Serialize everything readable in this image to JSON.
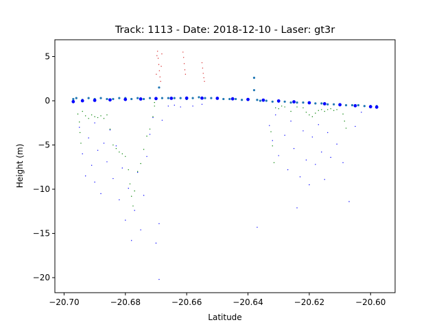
{
  "chart_data": {
    "type": "scatter",
    "title": "Track: 1113 - Date: 2018-12-10 - Laser: gt3r",
    "xlabel": "Latitude",
    "ylabel": "Height (m)",
    "xlim": [
      -20.703,
      -20.592
    ],
    "ylim": [
      -21.7,
      6.9
    ],
    "xticks": [
      -20.7,
      -20.68,
      -20.66,
      -20.64,
      -20.62,
      -20.6
    ],
    "xtick_labels": [
      "−20.70",
      "−20.68",
      "−20.66",
      "−20.64",
      "−20.62",
      "−20.60"
    ],
    "yticks": [
      5,
      0,
      -5,
      -10,
      -15,
      -20
    ],
    "ytick_labels": [
      "5",
      "0",
      "−5",
      "−10",
      "−15",
      "−20"
    ],
    "grid": false,
    "legend": "none",
    "series": [
      {
        "color": "#1f77b4",
        "marker_size": "medium",
        "points": [
          [
            -20.697,
            0.2
          ],
          [
            -20.696,
            0.3
          ],
          [
            -20.694,
            0.1
          ],
          [
            -20.692,
            0.3
          ],
          [
            -20.69,
            0.2
          ],
          [
            -20.688,
            0.3
          ],
          [
            -20.686,
            0.2
          ],
          [
            -20.684,
            0.2
          ],
          [
            -20.682,
            0.3
          ],
          [
            -20.68,
            0.3
          ],
          [
            -20.678,
            0.2
          ],
          [
            -20.676,
            0.3
          ],
          [
            -20.674,
            0.2
          ],
          [
            -20.672,
            0.3
          ],
          [
            -20.67,
            0.3
          ],
          [
            -20.669,
            1.5
          ],
          [
            -20.668,
            0.3
          ],
          [
            -20.666,
            0.3
          ],
          [
            -20.664,
            0.3
          ],
          [
            -20.662,
            0.3
          ],
          [
            -20.66,
            0.2
          ],
          [
            -20.658,
            0.3
          ],
          [
            -20.656,
            0.4
          ],
          [
            -20.654,
            0.3
          ],
          [
            -20.652,
            0.3
          ],
          [
            -20.65,
            0.3
          ],
          [
            -20.648,
            0.2
          ],
          [
            -20.646,
            0.2
          ],
          [
            -20.644,
            0.2
          ],
          [
            -20.642,
            0.1
          ],
          [
            -20.64,
            0.1
          ],
          [
            -20.638,
            1.2
          ],
          [
            -20.638,
            2.6
          ],
          [
            -20.637,
            0.1
          ],
          [
            -20.636,
            0.0
          ],
          [
            -20.634,
            0.0
          ],
          [
            -20.632,
            -0.1
          ],
          [
            -20.63,
            -0.1
          ],
          [
            -20.628,
            -0.1
          ],
          [
            -20.626,
            -0.2
          ],
          [
            -20.624,
            -0.2
          ],
          [
            -20.622,
            -0.2
          ],
          [
            -20.62,
            -0.2
          ],
          [
            -20.618,
            -0.3
          ],
          [
            -20.616,
            -0.3
          ],
          [
            -20.614,
            -0.4
          ],
          [
            -20.612,
            -0.4
          ],
          [
            -20.61,
            -0.4
          ],
          [
            -20.608,
            -0.5
          ],
          [
            -20.606,
            -0.5
          ],
          [
            -20.604,
            -0.5
          ],
          [
            -20.602,
            -0.6
          ],
          [
            -20.6,
            -0.6
          ],
          [
            -20.598,
            -0.6
          ]
        ]
      },
      {
        "color": "#0000ff",
        "marker_size": "large",
        "points": [
          [
            -20.697,
            -0.1
          ],
          [
            -20.694,
            0.0
          ],
          [
            -20.69,
            0.05
          ],
          [
            -20.685,
            0.1
          ],
          [
            -20.68,
            0.15
          ],
          [
            -20.675,
            0.2
          ],
          [
            -20.67,
            0.25
          ],
          [
            -20.665,
            0.28
          ],
          [
            -20.66,
            0.3
          ],
          [
            -20.655,
            0.3
          ],
          [
            -20.65,
            0.28
          ],
          [
            -20.645,
            0.22
          ],
          [
            -20.64,
            0.15
          ],
          [
            -20.635,
            0.07
          ],
          [
            -20.63,
            -0.02
          ],
          [
            -20.625,
            -0.12
          ],
          [
            -20.62,
            -0.23
          ],
          [
            -20.615,
            -0.34
          ],
          [
            -20.61,
            -0.45
          ],
          [
            -20.605,
            -0.56
          ],
          [
            -20.6,
            -0.67
          ],
          [
            -20.598,
            -0.72
          ]
        ]
      },
      {
        "color": "#0000ff",
        "marker_size": "small",
        "points": [
          [
            -20.695,
            -3.0
          ],
          [
            -20.694,
            -6.0
          ],
          [
            -20.693,
            -8.5
          ],
          [
            -20.692,
            -4.2
          ],
          [
            -20.691,
            -7.3
          ],
          [
            -20.69,
            -9.2
          ],
          [
            -20.69,
            -2.5
          ],
          [
            -20.689,
            -5.6
          ],
          [
            -20.688,
            -10.5
          ],
          [
            -20.687,
            -4.8
          ],
          [
            -20.686,
            -6.9
          ],
          [
            -20.685,
            -3.3
          ],
          [
            -20.684,
            -8.8
          ],
          [
            -20.683,
            -5.1
          ],
          [
            -20.682,
            -11.2
          ],
          [
            -20.681,
            -7.6
          ],
          [
            -20.68,
            -13.5
          ],
          [
            -20.679,
            -9.9
          ],
          [
            -20.678,
            -15.8
          ],
          [
            -20.677,
            -12.4
          ],
          [
            -20.676,
            -8.1
          ],
          [
            -20.675,
            -14.6
          ],
          [
            -20.674,
            -10.7
          ],
          [
            -20.673,
            -6.3
          ],
          [
            -20.672,
            -3.8
          ],
          [
            -20.671,
            -1.9
          ],
          [
            -20.67,
            -16.1
          ],
          [
            -20.669,
            -20.2
          ],
          [
            -20.669,
            -13.9
          ],
          [
            -20.668,
            -2.2
          ],
          [
            -20.666,
            -0.6
          ],
          [
            -20.664,
            -0.5
          ],
          [
            -20.662,
            -0.7
          ],
          [
            -20.658,
            -0.6
          ],
          [
            -20.655,
            -0.4
          ],
          [
            -20.637,
            -14.3
          ],
          [
            -20.633,
            -2.8
          ],
          [
            -20.632,
            -4.5
          ],
          [
            -20.631,
            -1.6
          ],
          [
            -20.63,
            -6.2
          ],
          [
            -20.628,
            -3.9
          ],
          [
            -20.627,
            -7.8
          ],
          [
            -20.626,
            -2.3
          ],
          [
            -20.625,
            -5.4
          ],
          [
            -20.624,
            -12.1
          ],
          [
            -20.623,
            -8.6
          ],
          [
            -20.622,
            -3.4
          ],
          [
            -20.621,
            -6.7
          ],
          [
            -20.62,
            -9.5
          ],
          [
            -20.619,
            -4.1
          ],
          [
            -20.618,
            -7.2
          ],
          [
            -20.617,
            -2.7
          ],
          [
            -20.616,
            -5.8
          ],
          [
            -20.615,
            -8.9
          ],
          [
            -20.614,
            -3.6
          ],
          [
            -20.613,
            -6.4
          ],
          [
            -20.611,
            -4.9
          ],
          [
            -20.609,
            -7.0
          ],
          [
            -20.607,
            -11.4
          ],
          [
            -20.605,
            -2.9
          ],
          [
            -20.603,
            -1.3
          ]
        ]
      },
      {
        "color": "#008000",
        "marker_size": "small",
        "points": [
          [
            -20.6955,
            -1.5
          ],
          [
            -20.695,
            -2.4
          ],
          [
            -20.6948,
            -3.6
          ],
          [
            -20.6945,
            -4.8
          ],
          [
            -20.694,
            -1.2
          ],
          [
            -20.693,
            -1.7
          ],
          [
            -20.692,
            -2.0
          ],
          [
            -20.691,
            -1.6
          ],
          [
            -20.69,
            -1.8
          ],
          [
            -20.689,
            -1.9
          ],
          [
            -20.688,
            -1.7
          ],
          [
            -20.687,
            -2.0
          ],
          [
            -20.686,
            -1.6
          ],
          [
            -20.685,
            -3.2
          ],
          [
            -20.684,
            -5.0
          ],
          [
            -20.683,
            -5.4
          ],
          [
            -20.682,
            -5.8
          ],
          [
            -20.681,
            -6.0
          ],
          [
            -20.68,
            -6.3
          ],
          [
            -20.679,
            -7.8
          ],
          [
            -20.6785,
            -9.4
          ],
          [
            -20.678,
            -10.8
          ],
          [
            -20.6775,
            -11.9
          ],
          [
            -20.677,
            -10.2
          ],
          [
            -20.676,
            -8.0
          ],
          [
            -20.675,
            -7.1
          ],
          [
            -20.674,
            -5.5
          ],
          [
            -20.673,
            -4.0
          ],
          [
            -20.672,
            -3.2
          ],
          [
            -20.671,
            -1.8
          ],
          [
            -20.6705,
            -0.6
          ],
          [
            -20.6705,
            -0.2
          ],
          [
            -20.6325,
            -3.5
          ],
          [
            -20.632,
            -5.1
          ],
          [
            -20.6315,
            -7.0
          ],
          [
            -20.631,
            -0.8
          ],
          [
            -20.63,
            -0.9
          ],
          [
            -20.629,
            -0.6
          ],
          [
            -20.628,
            -0.7
          ],
          [
            -20.626,
            -1.2
          ],
          [
            -20.624,
            -0.7
          ],
          [
            -20.622,
            -0.8
          ],
          [
            -20.621,
            -1.3
          ],
          [
            -20.62,
            -1.6
          ],
          [
            -20.619,
            -1.8
          ],
          [
            -20.618,
            -1.4
          ],
          [
            -20.617,
            -1.1
          ],
          [
            -20.616,
            -1.0
          ],
          [
            -20.615,
            -1.2
          ],
          [
            -20.614,
            -1.0
          ],
          [
            -20.613,
            -0.9
          ],
          [
            -20.612,
            -1.1
          ],
          [
            -20.611,
            -1.0
          ],
          [
            -20.609,
            -1.5
          ],
          [
            -20.6085,
            -2.3
          ],
          [
            -20.608,
            -3.1
          ]
        ]
      },
      {
        "color": "#d62728",
        "marker_size": "small",
        "points": [
          [
            -20.6695,
            5.6
          ],
          [
            -20.6693,
            4.8
          ],
          [
            -20.6691,
            4.1
          ],
          [
            -20.6689,
            3.4
          ],
          [
            -20.6687,
            2.7
          ],
          [
            -20.6685,
            2.2
          ],
          [
            -20.6697,
            5.1
          ],
          [
            -20.6683,
            3.9
          ],
          [
            -20.6681,
            5.3
          ],
          [
            -20.6699,
            3.0
          ],
          [
            -20.6612,
            5.5
          ],
          [
            -20.661,
            4.9
          ],
          [
            -20.6608,
            4.2
          ],
          [
            -20.6606,
            3.5
          ],
          [
            -20.6604,
            3.0
          ],
          [
            -20.655,
            4.3
          ],
          [
            -20.6548,
            3.7
          ],
          [
            -20.6546,
            3.1
          ],
          [
            -20.6544,
            2.6
          ],
          [
            -20.6542,
            2.2
          ]
        ]
      }
    ]
  }
}
